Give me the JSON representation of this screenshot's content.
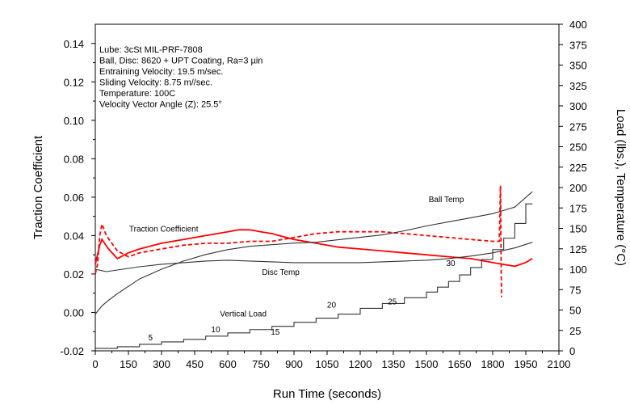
{
  "chart_data": {
    "type": "line",
    "xlabel": "Run Time (seconds)",
    "ylabel": "Traction Coefficient",
    "y2label": "Load (lbs.), Temperature (°C)",
    "xlim": [
      0,
      2100
    ],
    "ylim": [
      -0.02,
      0.15
    ],
    "y2lim": [
      0,
      400
    ],
    "xticks": [
      "0",
      "150",
      "300",
      "450",
      "600",
      "750",
      "900",
      "1050",
      "1200",
      "1350",
      "1500",
      "1650",
      "1800",
      "1950",
      "2100"
    ],
    "yticks": [
      "-0.02",
      "0.00",
      "0.02",
      "0.04",
      "0.06",
      "0.08",
      "0.10",
      "0.12",
      "0.14"
    ],
    "y2ticks": [
      "0",
      "25",
      "50",
      "75",
      "100",
      "125",
      "150",
      "175",
      "200",
      "225",
      "250",
      "275",
      "300",
      "325",
      "350",
      "375",
      "400"
    ],
    "annotation_lines": [
      "Lube: 3cSt MIL-PRF-7808",
      "Ball, Disc:  8620 + UPT Coating, Ra=3  µin",
      "Entraining Velocity:  19.5  m/sec.",
      "Sliding Velocity:  8.75 m//sec.",
      "Temperature:  100C",
      "Velocity Vector Angle (Z):  25.5°"
    ],
    "series": [
      {
        "name": "Traction Coefficient",
        "axis": "left",
        "color": "#ff0000",
        "style": "solid",
        "x": [
          0,
          10,
          20,
          30,
          60,
          100,
          150,
          200,
          300,
          400,
          500,
          600,
          650,
          700,
          750,
          800,
          900,
          1000,
          1100,
          1200,
          1300,
          1400,
          1500,
          1600,
          1700,
          1800,
          1850,
          1900,
          1950,
          1980
        ],
        "y": [
          0.025,
          0.03,
          0.035,
          0.038,
          0.033,
          0.028,
          0.031,
          0.033,
          0.036,
          0.038,
          0.04,
          0.042,
          0.043,
          0.043,
          0.042,
          0.041,
          0.038,
          0.036,
          0.034,
          0.033,
          0.032,
          0.031,
          0.03,
          0.029,
          0.028,
          0.026,
          0.025,
          0.024,
          0.026,
          0.028
        ]
      },
      {
        "name": "",
        "axis": "left",
        "color": "#ff0000",
        "style": "dashed",
        "x": [
          0,
          10,
          20,
          30,
          50,
          100,
          150,
          200,
          300,
          400,
          500,
          600,
          700,
          800,
          900,
          1000,
          1100,
          1200,
          1300,
          1400,
          1500,
          1600,
          1700,
          1800,
          1830,
          1835,
          1840
        ],
        "y": [
          0.02,
          0.025,
          0.04,
          0.046,
          0.04,
          0.032,
          0.029,
          0.031,
          0.033,
          0.035,
          0.036,
          0.036,
          0.037,
          0.037,
          0.039,
          0.041,
          0.042,
          0.042,
          0.042,
          0.041,
          0.04,
          0.039,
          0.038,
          0.037,
          0.037,
          0.066,
          0.008
        ]
      },
      {
        "name": "Ball Temp",
        "axis": "right",
        "color": "#333333",
        "style": "solid",
        "x": [
          0,
          30,
          60,
          100,
          200,
          300,
          400,
          500,
          600,
          700,
          800,
          900,
          1000,
          1100,
          1200,
          1300,
          1400,
          1500,
          1600,
          1700,
          1800,
          1900,
          1980
        ],
        "y": [
          45,
          55,
          62,
          70,
          88,
          100,
          110,
          118,
          124,
          128,
          130,
          132,
          133,
          136,
          139,
          142,
          147,
          153,
          158,
          163,
          168,
          176,
          195
        ]
      },
      {
        "name": "Disc Temp",
        "axis": "right",
        "color": "#333333",
        "style": "solid",
        "x": [
          0,
          50,
          100,
          200,
          300,
          400,
          500,
          600,
          700,
          800,
          900,
          1000,
          1100,
          1200,
          1300,
          1400,
          1500,
          1600,
          1700,
          1800,
          1900,
          1980
        ],
        "y": [
          100,
          97,
          99,
          103,
          106,
          108,
          110,
          111,
          110,
          109,
          108,
          108,
          108,
          108,
          109,
          110,
          111,
          113,
          116,
          120,
          126,
          133
        ]
      },
      {
        "name": "Vertical Load",
        "axis": "right",
        "color": "#333333",
        "style": "step",
        "x": [
          0,
          100,
          200,
          300,
          400,
          500,
          600,
          700,
          800,
          900,
          1000,
          1100,
          1200,
          1300,
          1400,
          1500,
          1550,
          1600,
          1650,
          1700,
          1750,
          1800,
          1850,
          1900,
          1950,
          1980
        ],
        "y": [
          3,
          5,
          8,
          11,
          14,
          18,
          22,
          26,
          30,
          35,
          40,
          45,
          52,
          58,
          65,
          72,
          78,
          85,
          93,
          102,
          112,
          124,
          138,
          156,
          180,
          180
        ]
      }
    ],
    "labels": [
      {
        "text": "Traction Coefficient",
        "x": 310,
        "y": 0.042
      },
      {
        "text": "Ball Temp",
        "x": 1590,
        "y_right": 182
      },
      {
        "text": "Disc Temp",
        "x": 840,
        "y_right": 93
      },
      {
        "text": "Vertical Load",
        "x": 670,
        "y_right": 42
      },
      {
        "text": "5",
        "x": 250,
        "y_right": 13
      },
      {
        "text": "10",
        "x": 545,
        "y_right": 23
      },
      {
        "text": "15",
        "x": 815,
        "y_right": 20
      },
      {
        "text": "20",
        "x": 1070,
        "y_right": 53
      },
      {
        "text": "25",
        "x": 1345,
        "y_right": 57
      },
      {
        "text": "30",
        "x": 1610,
        "y_right": 104
      }
    ],
    "grid": false,
    "legend": "none"
  }
}
